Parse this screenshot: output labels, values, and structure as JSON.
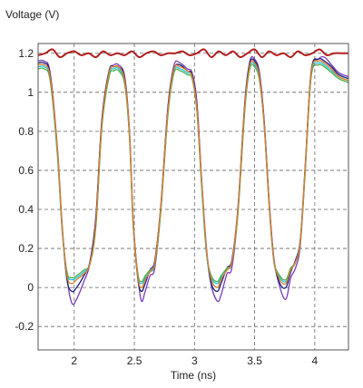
{
  "chart_data": {
    "type": "line",
    "title": "",
    "xlabel": "Time (ns)",
    "ylabel": "Voltage (V)",
    "xlim": [
      1.7,
      4.28
    ],
    "ylim": [
      -0.32,
      1.25
    ],
    "x_ticks": [
      2,
      2.5,
      3,
      3.5,
      4
    ],
    "x_tick_labels": [
      "2",
      "2.5",
      "3",
      "3.5",
      "4"
    ],
    "y_ticks": [
      -0.2,
      0,
      0.2,
      0.4,
      0.6,
      0.8,
      1,
      1.2
    ],
    "y_tick_labels": [
      "-0.2",
      "0",
      "0.2",
      "0.4",
      "0.6",
      "0.8",
      "1",
      "1.2"
    ],
    "grid": true,
    "grid_style": "dashed",
    "colors": {
      "plot_border": "#555555",
      "grid": "#666666",
      "axes_text": "#222222",
      "series_purple": "#7a3cb8",
      "series_navy": "#1b1f7a",
      "series_cyan": "#1ec8d8",
      "series_green": "#4caf50",
      "series_orange": "#e07b2a",
      "supply_red": "#b01e1e"
    },
    "series": [
      {
        "color_key": "series_purple",
        "x": [
          1.7,
          1.75,
          1.8,
          1.86,
          1.9,
          1.94,
          1.98,
          2.02,
          2.08,
          2.13,
          2.18,
          2.23,
          2.29,
          2.33,
          2.37,
          2.42,
          2.46,
          2.49,
          2.53,
          2.56,
          2.59,
          2.63,
          2.67,
          2.72,
          2.78,
          2.83,
          2.88,
          2.94,
          2.98,
          3.02,
          3.06,
          3.1,
          3.14,
          3.19,
          3.22,
          3.27,
          3.31,
          3.36,
          3.42,
          3.46,
          3.5,
          3.54,
          3.58,
          3.62,
          3.66,
          3.71,
          3.76,
          3.8,
          3.84,
          3.88,
          3.92,
          3.97,
          4.03,
          4.08,
          4.14,
          4.2,
          4.28
        ],
        "y": [
          1.16,
          1.16,
          1.1,
          0.72,
          0.32,
          0.05,
          -0.08,
          -0.06,
          0.03,
          0.12,
          0.35,
          0.85,
          1.1,
          1.14,
          1.14,
          1.08,
          0.8,
          0.35,
          0.05,
          -0.07,
          -0.02,
          0.06,
          0.1,
          0.4,
          0.92,
          1.14,
          1.15,
          1.12,
          1.1,
          0.95,
          0.55,
          0.2,
          0.01,
          -0.07,
          -0.04,
          0.07,
          0.1,
          0.38,
          0.95,
          1.16,
          1.17,
          1.1,
          0.85,
          0.45,
          0.15,
          0.0,
          -0.06,
          0.05,
          0.1,
          0.22,
          0.6,
          1.1,
          1.17,
          1.18,
          1.14,
          1.1,
          1.08
        ]
      },
      {
        "color_key": "series_navy",
        "x": [
          1.7,
          1.75,
          1.8,
          1.86,
          1.9,
          1.94,
          1.98,
          2.02,
          2.08,
          2.13,
          2.18,
          2.23,
          2.29,
          2.33,
          2.37,
          2.42,
          2.46,
          2.49,
          2.53,
          2.56,
          2.59,
          2.63,
          2.67,
          2.72,
          2.78,
          2.83,
          2.88,
          2.94,
          2.98,
          3.02,
          3.06,
          3.1,
          3.14,
          3.19,
          3.22,
          3.27,
          3.31,
          3.36,
          3.42,
          3.46,
          3.5,
          3.54,
          3.58,
          3.62,
          3.66,
          3.71,
          3.76,
          3.8,
          3.84,
          3.88,
          3.92,
          3.97,
          4.03,
          4.08,
          4.14,
          4.2,
          4.28
        ],
        "y": [
          1.15,
          1.15,
          1.09,
          0.7,
          0.3,
          0.04,
          -0.02,
          0.0,
          0.06,
          0.13,
          0.36,
          0.86,
          1.11,
          1.13,
          1.13,
          1.07,
          0.78,
          0.33,
          0.04,
          -0.02,
          0.02,
          0.09,
          0.14,
          0.42,
          0.93,
          1.12,
          1.14,
          1.11,
          1.09,
          0.93,
          0.53,
          0.18,
          0.02,
          -0.02,
          0.02,
          0.1,
          0.14,
          0.4,
          0.96,
          1.15,
          1.16,
          1.09,
          0.84,
          0.44,
          0.14,
          0.02,
          0.0,
          0.08,
          0.14,
          0.25,
          0.62,
          1.11,
          1.17,
          1.16,
          1.13,
          1.09,
          1.07
        ]
      },
      {
        "color_key": "series_cyan",
        "x": [
          1.7,
          1.75,
          1.8,
          1.86,
          1.9,
          1.94,
          1.98,
          2.02,
          2.08,
          2.13,
          2.18,
          2.23,
          2.29,
          2.33,
          2.37,
          2.42,
          2.46,
          2.49,
          2.53,
          2.56,
          2.59,
          2.63,
          2.67,
          2.72,
          2.78,
          2.83,
          2.88,
          2.94,
          2.98,
          3.02,
          3.06,
          3.1,
          3.14,
          3.19,
          3.22,
          3.27,
          3.31,
          3.36,
          3.42,
          3.46,
          3.5,
          3.54,
          3.58,
          3.62,
          3.66,
          3.71,
          3.76,
          3.8,
          3.84,
          3.88,
          3.92,
          3.97,
          4.03,
          4.08,
          4.14,
          4.2,
          4.28
        ],
        "y": [
          1.13,
          1.13,
          1.07,
          0.68,
          0.29,
          0.07,
          0.04,
          0.05,
          0.08,
          0.12,
          0.32,
          0.83,
          1.09,
          1.12,
          1.12,
          1.05,
          0.76,
          0.32,
          0.06,
          0.02,
          0.05,
          0.08,
          0.12,
          0.4,
          0.9,
          1.11,
          1.12,
          1.1,
          1.08,
          0.91,
          0.51,
          0.17,
          0.05,
          0.02,
          0.05,
          0.09,
          0.13,
          0.38,
          0.93,
          1.13,
          1.14,
          1.07,
          0.82,
          0.42,
          0.13,
          0.05,
          0.03,
          0.09,
          0.13,
          0.24,
          0.6,
          1.09,
          1.15,
          1.14,
          1.11,
          1.08,
          1.06
        ]
      },
      {
        "color_key": "series_green",
        "x": [
          1.7,
          1.75,
          1.8,
          1.86,
          1.9,
          1.94,
          1.98,
          2.02,
          2.08,
          2.13,
          2.18,
          2.23,
          2.29,
          2.33,
          2.37,
          2.42,
          2.46,
          2.49,
          2.53,
          2.56,
          2.59,
          2.63,
          2.67,
          2.72,
          2.78,
          2.83,
          2.88,
          2.94,
          2.98,
          3.02,
          3.06,
          3.1,
          3.14,
          3.19,
          3.22,
          3.27,
          3.31,
          3.36,
          3.42,
          3.46,
          3.5,
          3.54,
          3.58,
          3.62,
          3.66,
          3.71,
          3.76,
          3.8,
          3.84,
          3.88,
          3.92,
          3.97,
          4.03,
          4.08,
          4.14,
          4.2,
          4.28
        ],
        "y": [
          1.12,
          1.12,
          1.06,
          0.69,
          0.3,
          0.08,
          0.05,
          0.06,
          0.09,
          0.12,
          0.31,
          0.82,
          1.08,
          1.11,
          1.11,
          1.04,
          0.77,
          0.33,
          0.07,
          0.03,
          0.06,
          0.09,
          0.12,
          0.39,
          0.89,
          1.1,
          1.11,
          1.09,
          1.07,
          0.9,
          0.52,
          0.18,
          0.06,
          0.03,
          0.06,
          0.1,
          0.13,
          0.37,
          0.92,
          1.12,
          1.13,
          1.06,
          0.83,
          0.43,
          0.14,
          0.06,
          0.04,
          0.1,
          0.13,
          0.23,
          0.59,
          1.08,
          1.14,
          1.13,
          1.1,
          1.07,
          1.05
        ]
      },
      {
        "color_key": "series_orange",
        "x": [
          1.7,
          1.75,
          1.8,
          1.86,
          1.9,
          1.94,
          1.98,
          2.02,
          2.08,
          2.13,
          2.18,
          2.23,
          2.29,
          2.33,
          2.37,
          2.42,
          2.46,
          2.49,
          2.53,
          2.56,
          2.59,
          2.63,
          2.67,
          2.72,
          2.78,
          2.83,
          2.88,
          2.94,
          2.98,
          3.02,
          3.06,
          3.1,
          3.14,
          3.19,
          3.22,
          3.27,
          3.31,
          3.36,
          3.42,
          3.46,
          3.5,
          3.54,
          3.58,
          3.62,
          3.66,
          3.71,
          3.76,
          3.8,
          3.84,
          3.88,
          3.92,
          3.97,
          4.03,
          4.08,
          4.14,
          4.2,
          4.28
        ],
        "y": [
          1.14,
          1.14,
          1.08,
          0.71,
          0.31,
          0.06,
          0.02,
          0.04,
          0.07,
          0.12,
          0.33,
          0.84,
          1.1,
          1.13,
          1.13,
          1.06,
          0.79,
          0.34,
          0.05,
          0.0,
          0.04,
          0.08,
          0.13,
          0.41,
          0.91,
          1.12,
          1.13,
          1.11,
          1.08,
          0.92,
          0.54,
          0.19,
          0.04,
          0.0,
          0.04,
          0.09,
          0.13,
          0.39,
          0.94,
          1.14,
          1.15,
          1.08,
          0.83,
          0.43,
          0.14,
          0.04,
          0.02,
          0.09,
          0.13,
          0.24,
          0.61,
          1.1,
          1.16,
          1.15,
          1.12,
          1.08,
          1.06
        ]
      },
      {
        "color_key": "supply_red",
        "x": [
          1.7,
          1.76,
          1.82,
          1.88,
          1.94,
          2.0,
          2.06,
          2.12,
          2.18,
          2.24,
          2.3,
          2.36,
          2.42,
          2.48,
          2.54,
          2.6,
          2.66,
          2.72,
          2.78,
          2.84,
          2.9,
          2.96,
          3.02,
          3.08,
          3.14,
          3.2,
          3.26,
          3.32,
          3.38,
          3.44,
          3.5,
          3.56,
          3.62,
          3.68,
          3.74,
          3.8,
          3.86,
          3.92,
          3.98,
          4.04,
          4.1,
          4.16,
          4.22,
          4.28
        ],
        "y": [
          1.19,
          1.2,
          1.22,
          1.18,
          1.2,
          1.21,
          1.19,
          1.2,
          1.18,
          1.21,
          1.19,
          1.2,
          1.19,
          1.21,
          1.18,
          1.2,
          1.21,
          1.19,
          1.2,
          1.2,
          1.21,
          1.19,
          1.2,
          1.22,
          1.18,
          1.21,
          1.19,
          1.21,
          1.18,
          1.2,
          1.22,
          1.18,
          1.21,
          1.19,
          1.2,
          1.18,
          1.21,
          1.19,
          1.2,
          1.22,
          1.19,
          1.2,
          1.2,
          1.2
        ]
      }
    ]
  }
}
